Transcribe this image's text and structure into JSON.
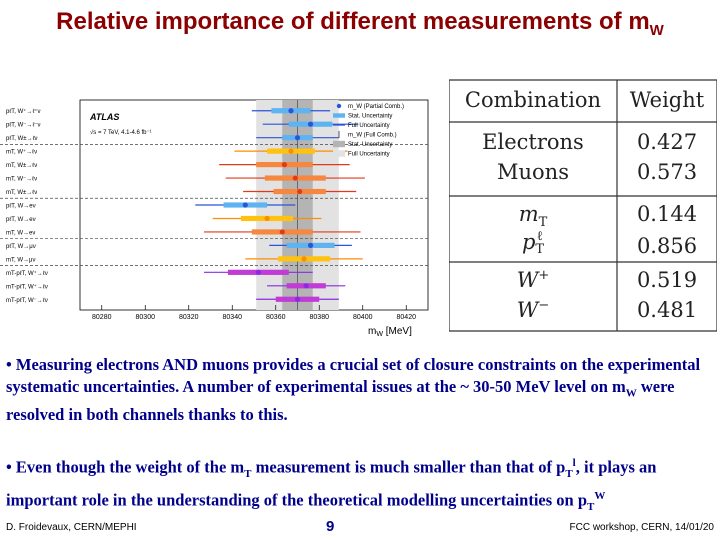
{
  "slide": {
    "title_main": "Relative importance of different measurements of m",
    "title_sub": "W",
    "page_number": "9",
    "footer_left": "D. Froidevaux, CERN/MEPHI",
    "footer_right": "FCC workshop, CERN, 14/01/20"
  },
  "bullets": {
    "b1_text": "Measuring electrons AND muons provides a crucial set of closure constraints on the experimental systematic uncertainties. A number of experimental issues at the ~ 30-50 MeV level on m",
    "b1_sub": "W",
    "b1_tail": " were resolved in both channels thanks to this.",
    "b2_a": "Even though the weight of the m",
    "b2_sub1": "T",
    "b2_b": " measurement is much smaller than that of p",
    "b2_sub2": "T",
    "b2_sup2": "l",
    "b2_c": ", it plays an important role in the understanding of the theoretical modelling uncertainties on p",
    "b2_sub3": "T",
    "b2_sup3": "W"
  },
  "weights_table": {
    "header": [
      "Combination",
      "Weight"
    ],
    "groups": [
      {
        "rows": [
          {
            "label": "Electrons",
            "value": "0.427"
          },
          {
            "label": "Muons",
            "value": "0.573"
          }
        ]
      },
      {
        "rows": [
          {
            "label": "m",
            "sub": "T",
            "sup": "",
            "value": "0.144"
          },
          {
            "label": "p",
            "sub": "T",
            "sup": "ℓ",
            "value": "0.856"
          }
        ]
      },
      {
        "rows": [
          {
            "label": "W",
            "sub": "",
            "sup": "+",
            "value": "0.519"
          },
          {
            "label": "W",
            "sub": "",
            "sup": "−",
            "value": "0.481"
          }
        ]
      }
    ]
  },
  "chart_data": {
    "type": "scatter",
    "xlabel": "m",
    "xlabel_sub": "W",
    "xlabel_unit": " [MeV]",
    "xlim": [
      80270,
      80430
    ],
    "x_ticks": [
      80280,
      80300,
      80320,
      80340,
      80360,
      80380,
      80400,
      80420
    ],
    "atlas_label": "ATLAS",
    "energy_label": "√s = 7 TeV, 4.1-4.6 fb⁻¹",
    "legend": [
      "m_W (Partial Comb.)",
      "Stat. Uncertainty",
      "Full Uncertainty",
      "m_W (Full Comb.)",
      "Stat. Uncertainty",
      "Full Uncertainty"
    ],
    "combination": {
      "value": 80370,
      "stat": 7,
      "full": 19
    },
    "measurements": [
      {
        "label": "pℓT, W⁺→ℓ⁺ν",
        "group": "blue",
        "value": 80367,
        "stat": 9,
        "full": 18
      },
      {
        "label": "pℓT, W⁻→ℓ⁻ν",
        "group": "blue",
        "value": 80376,
        "stat": 10,
        "full": 22
      },
      {
        "label": "pℓT, W±→ℓν",
        "group": "blue",
        "value": 80370,
        "stat": 7,
        "full": 19
      },
      {
        "label": "mT, W⁺→ℓν",
        "group": "orange",
        "value": 80367,
        "stat": 11,
        "full": 26
      },
      {
        "label": "mT, W±→ℓν",
        "group": "red",
        "value": 80364,
        "stat": 13,
        "full": 30
      },
      {
        "label": "mT, W⁻→ℓν",
        "group": "red",
        "value": 80369,
        "stat": 14,
        "full": 32
      },
      {
        "label": "mT, W±→ℓν",
        "group": "red",
        "value": 80371,
        "stat": 12,
        "full": 26
      },
      {
        "label": "pℓT, W→eν",
        "group": "blue",
        "value": 80346,
        "stat": 10,
        "full": 23
      },
      {
        "label": "pℓT, W→eν",
        "group": "orange",
        "value": 80356,
        "stat": 12,
        "full": 25
      },
      {
        "label": "mT, W→eν",
        "group": "red",
        "value": 80363,
        "stat": 14,
        "full": 36
      },
      {
        "label": "pℓT, W→μν",
        "group": "blue",
        "value": 80376,
        "stat": 11,
        "full": 19
      },
      {
        "label": "mT, W→μν",
        "group": "orange",
        "value": 80373,
        "stat": 12,
        "full": 27
      },
      {
        "label": "mT-pℓT, W⁺→ℓν",
        "group": "purple",
        "value": 80352,
        "stat": 14,
        "full": 25
      },
      {
        "label": "mT-pℓT, W⁺→ℓν",
        "group": "purple",
        "value": 80374,
        "stat": 9,
        "full": 18
      },
      {
        "label": "mT-pℓT, W⁻→ℓν",
        "group": "purple",
        "value": 80370,
        "stat": 10,
        "full": 19
      }
    ],
    "colors": {
      "blue": "#2a55d9",
      "blue_stat": "#5db4f0",
      "orange": "#ff8c00",
      "orange_stat": "#ffc20e",
      "red": "#e03a1a",
      "red_stat": "#f7873e",
      "purple": "#8a2be2",
      "purple_stat": "#c13bd6",
      "band_full": "#e2e2e2",
      "band_stat": "#b4b4b4"
    }
  }
}
